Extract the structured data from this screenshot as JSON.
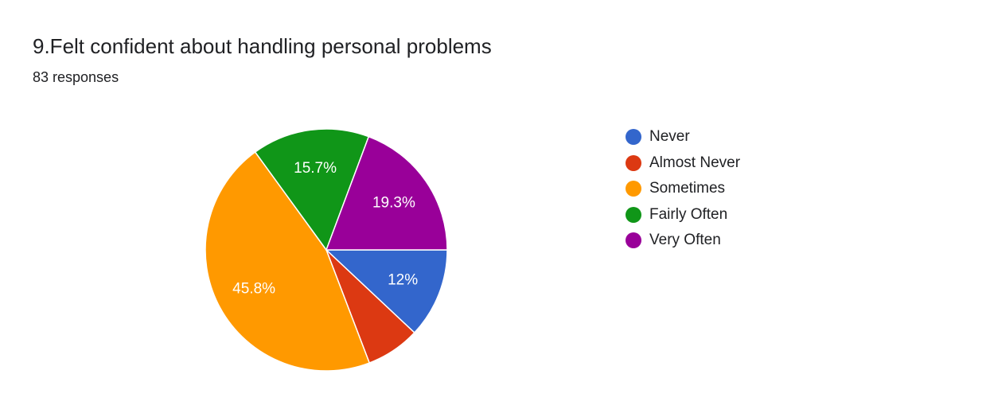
{
  "header": {
    "title": "9.Felt confident about handling personal problems",
    "responses": "83 responses"
  },
  "chart_data": {
    "type": "pie",
    "title": "9.Felt confident about handling personal problems",
    "subtitle": "83 responses",
    "legend_position": "right",
    "slices": [
      {
        "label": "Never",
        "value": 12.0,
        "display": "12%",
        "color": "#3366cc"
      },
      {
        "label": "Almost Never",
        "value": 7.2,
        "display": "",
        "color": "#dc3912"
      },
      {
        "label": "Sometimes",
        "value": 45.8,
        "display": "45.8%",
        "color": "#ff9900"
      },
      {
        "label": "Fairly Often",
        "value": 15.7,
        "display": "15.7%",
        "color": "#109618"
      },
      {
        "label": "Very Often",
        "value": 19.3,
        "display": "19.3%",
        "color": "#990099"
      }
    ]
  }
}
